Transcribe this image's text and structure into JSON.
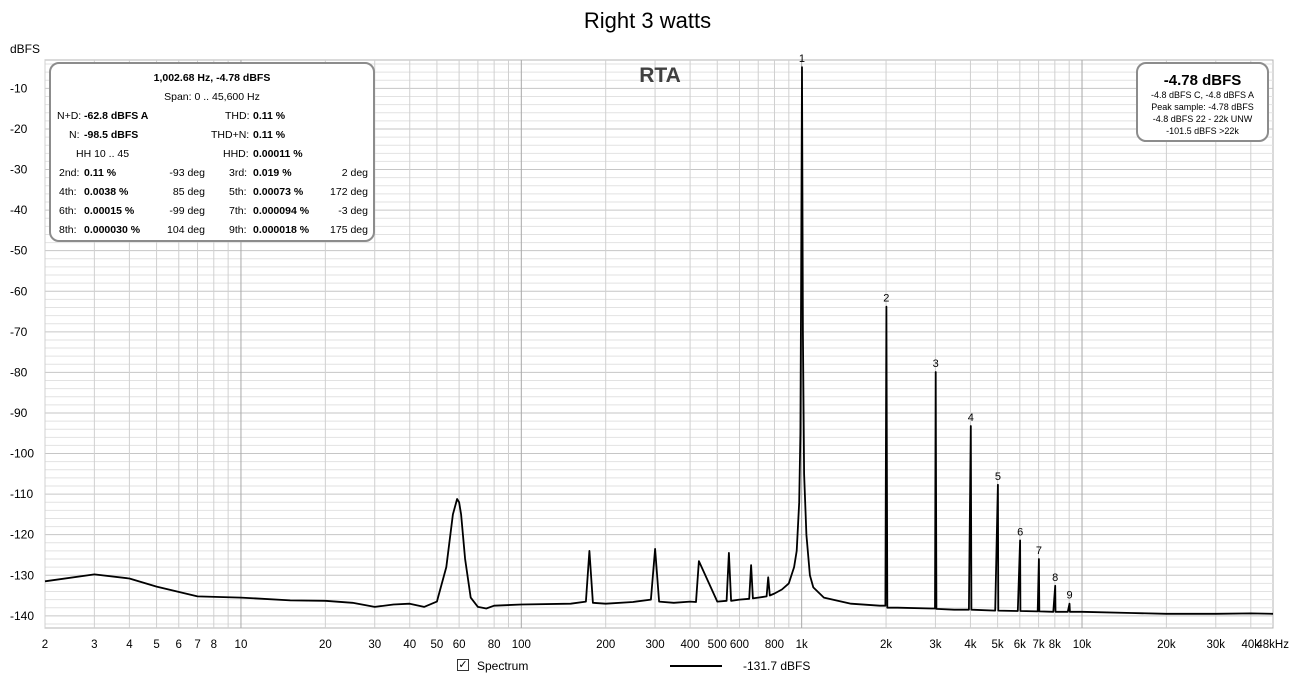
{
  "title": "Right 3 watts",
  "y_unit": "dBFS",
  "rta_label": "RTA",
  "stats": {
    "freq_level": "1,002.68 Hz, -4.78 dBFS",
    "span": "Span: 0 .. 45,600 Hz",
    "nd_label": "N+D:",
    "nd_value": "-62.8 dBFS A",
    "thd_label": "THD:",
    "thd_value": "0.11 %",
    "n_label": "N:",
    "n_value": "-98.5 dBFS",
    "thdn_label": "THD+N:",
    "thdn_value": "0.11 %",
    "hh": "HH 10 .. 45",
    "hhd_label": "HHD:",
    "hhd_value": "0.00011 %",
    "harmonics": [
      {
        "l1": "2nd:",
        "v1": "0.11 %",
        "p1": "-93 deg",
        "l2": "3rd:",
        "v2": "0.019 %",
        "p2": "2 deg"
      },
      {
        "l1": "4th:",
        "v1": "0.0038 %",
        "p1": "85 deg",
        "l2": "5th:",
        "v2": "0.00073 %",
        "p2": "172 deg"
      },
      {
        "l1": "6th:",
        "v1": "0.00015 %",
        "p1": "-99 deg",
        "l2": "7th:",
        "v2": "0.000094 %",
        "p2": "-3 deg"
      },
      {
        "l1": "8th:",
        "v1": "0.000030 %",
        "p1": "104 deg",
        "l2": "9th:",
        "v2": "0.000018 %",
        "p2": "175 deg"
      }
    ]
  },
  "level_box": {
    "main": "-4.78 dBFS",
    "line1": "-4.8 dBFS C, -4.8 dBFS A",
    "line2": "Peak sample: -4.78 dBFS",
    "line3": "-4.8 dBFS 22 - 22k UNW",
    "line4": "-101.5 dBFS >22k"
  },
  "legend": {
    "checkbox_mark": "✓",
    "spectrum_label": "Spectrum",
    "cursor_value": "-131.7 dBFS"
  },
  "colors": {
    "trace": "#000000",
    "grid_minor": "#e2e2e2",
    "grid_major": "#a8a8a8",
    "plot_border": "#b4b4b4",
    "box_border": "#8c8c8c"
  },
  "chart_data": {
    "type": "line",
    "x_scale": "log",
    "xlim": [
      2,
      48000
    ],
    "ylim": [
      -143,
      -3
    ],
    "x_ticks": [
      {
        "v": 2,
        "l": "2"
      },
      {
        "v": 3,
        "l": "3"
      },
      {
        "v": 4,
        "l": "4"
      },
      {
        "v": 5,
        "l": "5"
      },
      {
        "v": 6,
        "l": "6"
      },
      {
        "v": 7,
        "l": "7"
      },
      {
        "v": 8,
        "l": "8"
      },
      {
        "v": 10,
        "l": "10"
      },
      {
        "v": 20,
        "l": "20"
      },
      {
        "v": 30,
        "l": "30"
      },
      {
        "v": 40,
        "l": "40"
      },
      {
        "v": 50,
        "l": "50"
      },
      {
        "v": 60,
        "l": "60"
      },
      {
        "v": 80,
        "l": "80"
      },
      {
        "v": 100,
        "l": "100"
      },
      {
        "v": 200,
        "l": "200"
      },
      {
        "v": 300,
        "l": "300"
      },
      {
        "v": 400,
        "l": "400"
      },
      {
        "v": 500,
        "l": "500"
      },
      {
        "v": 600,
        "l": "600"
      },
      {
        "v": 800,
        "l": "800"
      },
      {
        "v": 1000,
        "l": "1k"
      },
      {
        "v": 2000,
        "l": "2k"
      },
      {
        "v": 3000,
        "l": "3k"
      },
      {
        "v": 4000,
        "l": "4k"
      },
      {
        "v": 5000,
        "l": "5k"
      },
      {
        "v": 6000,
        "l": "6k"
      },
      {
        "v": 7000,
        "l": "7k"
      },
      {
        "v": 8000,
        "l": "8k"
      },
      {
        "v": 10000,
        "l": "10k"
      },
      {
        "v": 20000,
        "l": "20k"
      },
      {
        "v": 30000,
        "l": "30k"
      },
      {
        "v": 40000,
        "l": "40k"
      },
      {
        "v": 48000,
        "l": "48kHz"
      }
    ],
    "y_ticks": [
      -10,
      -20,
      -30,
      -40,
      -50,
      -60,
      -70,
      -80,
      -90,
      -100,
      -110,
      -120,
      -130,
      -140
    ],
    "series": [
      {
        "x": [
          2,
          3,
          4,
          5,
          7,
          10,
          15,
          20,
          25,
          30,
          35,
          40,
          45,
          50,
          54,
          57,
          59,
          60,
          61,
          63,
          66,
          70,
          75,
          80,
          100,
          150,
          170,
          175,
          180,
          200,
          250,
          290,
          300,
          310,
          350,
          400,
          420,
          430,
          500,
          540,
          550,
          560,
          600,
          650,
          660,
          670,
          700,
          750,
          760,
          770,
          800,
          850,
          900,
          940,
          960,
          980,
          990,
          995,
          1002.68,
          1010,
          1020,
          1040,
          1070,
          1100,
          1200,
          1500,
          1900,
          1990,
          2005,
          2020,
          2200,
          2900,
          2990,
          3008,
          3025,
          3500,
          3950,
          4011,
          4030,
          4900,
          5013,
          5030,
          5900,
          6016,
          6030,
          6950,
          7019,
          7040,
          7900,
          8021,
          8040,
          8900,
          9024,
          9050,
          10000,
          15000,
          20000,
          30000,
          40000,
          48000
        ],
        "y": [
          -131.5,
          -129.8,
          -130.8,
          -132.8,
          -135.2,
          -135.5,
          -136.2,
          -136.3,
          -136.8,
          -137.8,
          -137.2,
          -137.0,
          -137.8,
          -136.5,
          -128,
          -115,
          -111.2,
          -112,
          -115,
          -126,
          -135.5,
          -137.8,
          -138.2,
          -137.5,
          -137.2,
          -137,
          -136.5,
          -124,
          -136.8,
          -137,
          -136.6,
          -136,
          -123.5,
          -136.5,
          -136.8,
          -136.5,
          -136.6,
          -126.5,
          -136.5,
          -136.3,
          -124.5,
          -136.3,
          -136.0,
          -135.8,
          -127.5,
          -135.7,
          -135.5,
          -135.2,
          -130.5,
          -135.0,
          -134.5,
          -133.5,
          -132,
          -128,
          -124,
          -112,
          -95,
          -60,
          -4.78,
          -70,
          -105,
          -120,
          -130,
          -133,
          -135.5,
          -137,
          -137.5,
          -137.5,
          -63.8,
          -138,
          -138,
          -138.2,
          -138.2,
          -79.9,
          -138.3,
          -138.5,
          -138.5,
          -93.2,
          -138.5,
          -138.7,
          -107.7,
          -138.7,
          -138.8,
          -121.4,
          -138.8,
          -138.9,
          -126.0,
          -138.9,
          -139,
          -132.6,
          -139,
          -139,
          -137.0,
          -139,
          -139,
          -139.3,
          -139.5,
          -139.5,
          -139.4,
          -139.5
        ]
      }
    ],
    "harmonic_markers": [
      {
        "label": "1",
        "x": 1002.68,
        "y": -4.78
      },
      {
        "label": "2",
        "x": 2005,
        "y": -63.8
      },
      {
        "label": "3",
        "x": 3008,
        "y": -79.9
      },
      {
        "label": "4",
        "x": 4011,
        "y": -93.2
      },
      {
        "label": "5",
        "x": 5013,
        "y": -107.7
      },
      {
        "label": "6",
        "x": 6016,
        "y": -121.4
      },
      {
        "label": "7",
        "x": 7019,
        "y": -126.0
      },
      {
        "label": "8",
        "x": 8021,
        "y": -132.6
      },
      {
        "label": "9",
        "x": 9024,
        "y": -137.0
      }
    ]
  }
}
